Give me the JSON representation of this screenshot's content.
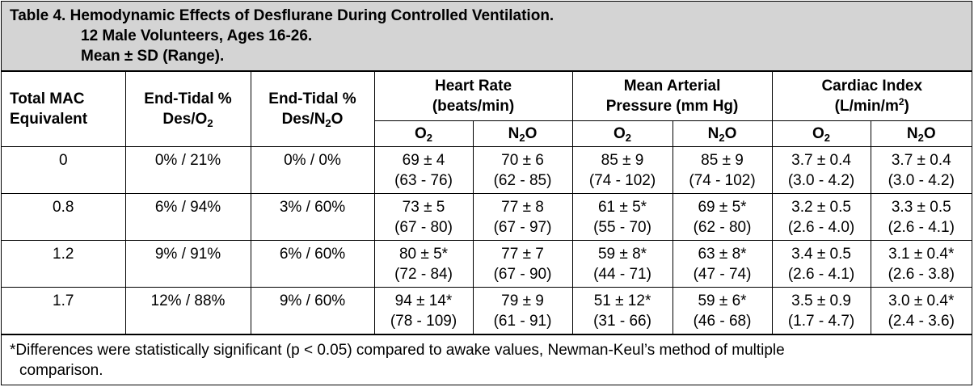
{
  "title": {
    "line1": "Table 4. Hemodynamic Effects of Desflurane During Controlled Ventilation.",
    "line2": "12 Male Volunteers, Ages 16-26.",
    "line3": "Mean ± SD (Range)."
  },
  "headers": {
    "mac": [
      "Total MAC",
      "Equivalent"
    ],
    "et_o2": {
      "line1": "End-Tidal %",
      "pre": "Des/O",
      "sub": "2"
    },
    "et_n2o": {
      "line1": "End-Tidal %",
      "pre": "Des/N",
      "sub": "2",
      "post": "O"
    },
    "hr": [
      "Heart Rate",
      "(beats/min)"
    ],
    "map": [
      "Mean Arterial",
      "Pressure (mm Hg)"
    ],
    "ci": {
      "line1": "Cardiac Index",
      "pre": "(L/min/m",
      "sup": "2",
      "post": ")"
    },
    "o2": {
      "pre": "O",
      "sub": "2"
    },
    "n2o": {
      "pre": "N",
      "sub": "2",
      "post": "O"
    }
  },
  "rows": [
    {
      "mac": "0",
      "et_o2": "0% / 21%",
      "et_n2o": "0% / 0%",
      "hr_o2": [
        "69 ± 4",
        "(63 - 76)"
      ],
      "hr_n2o": [
        "70 ± 6",
        "(62 - 85)"
      ],
      "map_o2": [
        "85 ± 9",
        "(74 - 102)"
      ],
      "map_n2o": [
        "85 ± 9",
        "(74 - 102)"
      ],
      "ci_o2": [
        "3.7 ± 0.4",
        "(3.0 - 4.2)"
      ],
      "ci_n2o": [
        "3.7 ± 0.4",
        "(3.0 - 4.2)"
      ]
    },
    {
      "mac": "0.8",
      "et_o2": "6% / 94%",
      "et_n2o": "3% / 60%",
      "hr_o2": [
        "73 ± 5",
        "(67 - 80)"
      ],
      "hr_n2o": [
        "77 ± 8",
        "(67 - 97)"
      ],
      "map_o2": [
        "61 ± 5*",
        "(55 - 70)"
      ],
      "map_n2o": [
        "69 ± 5*",
        "(62 - 80)"
      ],
      "ci_o2": [
        "3.2 ± 0.5",
        "(2.6 - 4.0)"
      ],
      "ci_n2o": [
        "3.3 ± 0.5",
        "(2.6 - 4.1)"
      ]
    },
    {
      "mac": "1.2",
      "et_o2": "9% / 91%",
      "et_n2o": "6% / 60%",
      "hr_o2": [
        "80 ± 5*",
        "(72 - 84)"
      ],
      "hr_n2o": [
        "77 ± 7",
        "(67 - 90)"
      ],
      "map_o2": [
        "59 ± 8*",
        "(44 - 71)"
      ],
      "map_n2o": [
        "63 ± 8*",
        "(47 - 74)"
      ],
      "ci_o2": [
        "3.4 ± 0.5",
        "(2.6 - 4.1)"
      ],
      "ci_n2o": [
        "3.1 ± 0.4*",
        "(2.6 - 3.8)"
      ]
    },
    {
      "mac": "1.7",
      "et_o2": "12% / 88%",
      "et_n2o": "9% / 60%",
      "hr_o2": [
        "94 ± 14*",
        "(78 - 109)"
      ],
      "hr_n2o": [
        "79 ± 9",
        "(61 - 91)"
      ],
      "map_o2": [
        "51 ± 12*",
        "(31 - 66)"
      ],
      "map_n2o": [
        "59 ± 6*",
        "(46 - 68)"
      ],
      "ci_o2": [
        "3.5 ± 0.9",
        "(1.7 - 4.7)"
      ],
      "ci_n2o": [
        "3.0 ± 0.4*",
        "(2.4 - 3.6)"
      ]
    }
  ],
  "footnote": {
    "line1": "*Differences were statistically significant (p < 0.05) compared to awake values, Newman-Keul’s method of multiple",
    "line2": "comparison."
  }
}
